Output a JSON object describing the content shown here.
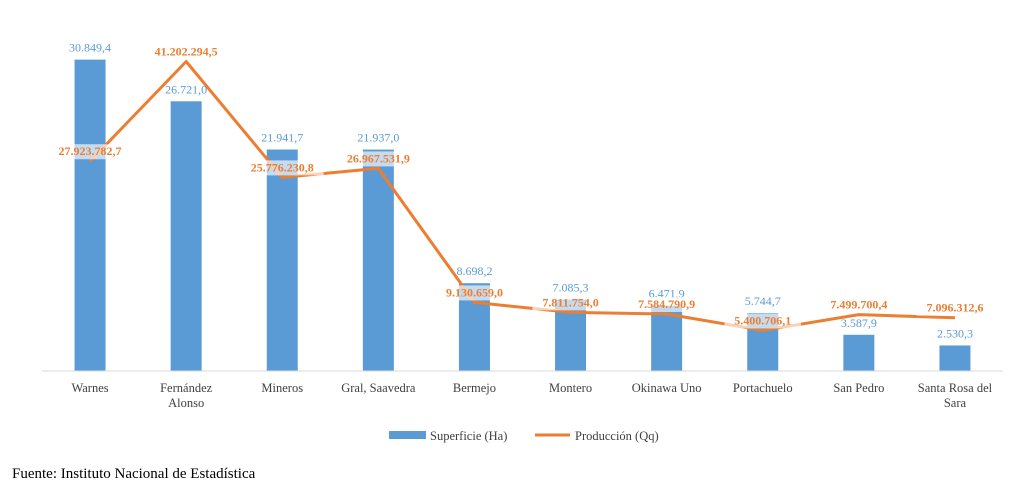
{
  "chart_data": {
    "type": "bar",
    "categories": [
      [
        "Warnes"
      ],
      [
        "Fernández",
        "Alonso"
      ],
      [
        "Mineros"
      ],
      [
        "Gral, Saavedra"
      ],
      [
        "Bermejo"
      ],
      [
        "Montero"
      ],
      [
        "Okinawa Uno"
      ],
      [
        "Portachuelo"
      ],
      [
        "San Pedro"
      ],
      [
        "Santa Rosa del",
        "Sara"
      ]
    ],
    "series": [
      {
        "name": "Superficie (Ha)",
        "kind": "bar",
        "color": "#5b9bd5",
        "values": [
          30849.4,
          26721.0,
          21941.7,
          21937.0,
          8698.2,
          7085.3,
          6471.9,
          5744.7,
          3587.9,
          2530.3
        ],
        "labels": [
          "30.849,4",
          "26.721,0",
          "21.941,7",
          "21.937,0",
          "8.698,2",
          "7.085,3",
          "6.471,9",
          "5.744,7",
          "3.587,9",
          "2.530,3"
        ]
      },
      {
        "name": "Producción (Qq)",
        "kind": "line",
        "color": "#ed7d31",
        "values": [
          27923782.7,
          41202294.5,
          25776230.8,
          26967531.9,
          9130659.0,
          7811754.0,
          7584790.9,
          5400706.1,
          7499700.4,
          7096312.6
        ],
        "labels": [
          "27.923.782,7",
          "41.202.294,5",
          "25.776.230,8",
          "26.967.531,9",
          "9.130.659,0",
          "7.811.754,0",
          "7.584.790,9",
          "5.400.706,1",
          "7.499.700,4",
          "7.096.312,6"
        ]
      }
    ],
    "bar_axis_range": [
      0,
      32000
    ],
    "line_axis_range": [
      0,
      43000000
    ],
    "grid": false,
    "legend_position": "bottom"
  },
  "source_note": "Fuente: Instituto Nacional de Estadística"
}
